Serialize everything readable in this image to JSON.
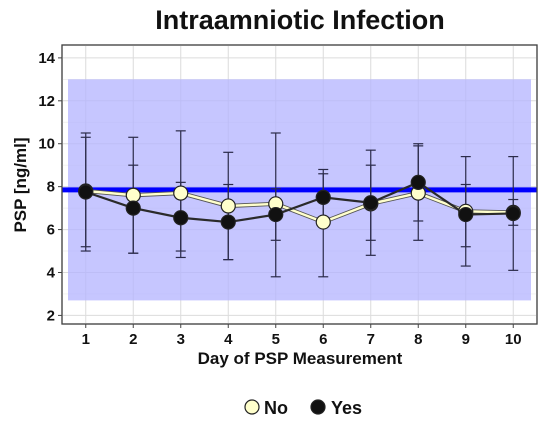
{
  "chart_data": {
    "type": "line",
    "title": "Intraamniotic Infection",
    "xlabel": "Day of PSP Measurement",
    "ylabel": "PSP [ng/ml]",
    "x": [
      1,
      2,
      3,
      4,
      5,
      6,
      7,
      8,
      9,
      10
    ],
    "xlim": [
      0.5,
      10.5
    ],
    "ylim": [
      1.6,
      14.6
    ],
    "yticks": [
      2,
      4,
      6,
      8,
      10,
      12,
      14
    ],
    "grid": true,
    "legend_position": "bottom",
    "reference_band": {
      "ymin": 2.7,
      "ymax": 13.0,
      "color": "#b3b3ff"
    },
    "reference_line": {
      "y": 7.85,
      "color": "#0000ff"
    },
    "series": [
      {
        "name": "No",
        "color": "#ffffcc",
        "values": [
          7.8,
          7.6,
          7.7,
          7.1,
          7.2,
          6.35,
          7.2,
          7.7,
          6.85,
          6.8
        ],
        "error_upper": [
          10.5,
          10.3,
          10.6,
          9.6,
          10.5,
          8.8,
          9.7,
          10.0,
          9.4,
          9.4
        ],
        "error_lower": [
          5.2,
          4.9,
          4.7,
          4.6,
          3.8,
          3.8,
          4.8,
          5.5,
          4.3,
          4.1
        ]
      },
      {
        "name": "Yes",
        "color": "#111111",
        "values": [
          7.75,
          7.0,
          6.55,
          6.35,
          6.7,
          7.5,
          7.25,
          8.2,
          6.7,
          6.75
        ],
        "error_upper": [
          10.3,
          9.0,
          8.2,
          8.1,
          7.9,
          8.6,
          9.0,
          9.9,
          8.1,
          7.4
        ],
        "error_lower": [
          5.0,
          4.9,
          5.0,
          4.6,
          5.5,
          6.4,
          5.5,
          6.4,
          5.2,
          6.2
        ]
      }
    ]
  }
}
